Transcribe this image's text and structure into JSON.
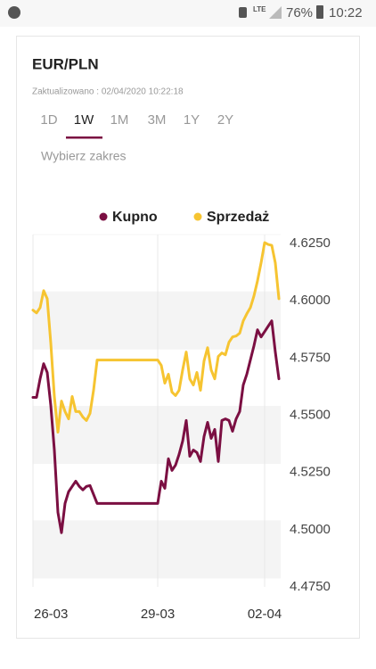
{
  "status_bar": {
    "network": "LTE",
    "battery": "76%",
    "time": "10:22"
  },
  "header": {
    "title": "EUR/PLN",
    "updated": "Zaktualizowano : 02/04/2020 10:22:18"
  },
  "tabs": [
    {
      "label": "1D"
    },
    {
      "label": "1W",
      "active": true
    },
    {
      "label": "1M"
    },
    {
      "label": "3M"
    },
    {
      "label": "1Y"
    },
    {
      "label": "2Y"
    }
  ],
  "range_label": "Wybierz zakres",
  "chart_data": {
    "type": "line",
    "legend": "top",
    "categories": [
      "26-03",
      null,
      null,
      null,
      null,
      null,
      null,
      null,
      null,
      null,
      null,
      null,
      null,
      null,
      null,
      null,
      null,
      null,
      null,
      null,
      null,
      null,
      null,
      null,
      null,
      null,
      null,
      null,
      null,
      null,
      null,
      null,
      null,
      null,
      null,
      "29-03",
      null,
      null,
      null,
      null,
      null,
      null,
      null,
      null,
      null,
      null,
      null,
      null,
      null,
      null,
      null,
      null,
      null,
      null,
      null,
      null,
      null,
      null,
      null,
      null,
      null,
      null,
      null,
      null,
      null,
      "02-04",
      null,
      null,
      null,
      null
    ],
    "series": [
      {
        "name": "Kupno",
        "color": "#7b0f42",
        "values": [
          4.5539,
          4.5539,
          4.562,
          4.5686,
          4.5648,
          4.5504,
          4.5309,
          4.5037,
          4.4948,
          4.5076,
          4.5127,
          4.515,
          4.5173,
          4.515,
          4.5135,
          4.515,
          4.5154,
          4.5115,
          4.5076,
          4.5076,
          4.5076,
          4.5076,
          4.5076,
          4.5076,
          4.5076,
          4.5076,
          4.5076,
          4.5076,
          4.5076,
          4.5076,
          4.5076,
          4.5076,
          4.5076,
          4.5076,
          4.5076,
          4.5076,
          4.5173,
          4.5142,
          4.5271,
          4.522,
          4.5243,
          4.529,
          4.5348,
          4.5438,
          4.5282,
          4.5309,
          4.5298,
          4.5259,
          4.5368,
          4.543,
          4.536,
          4.5399,
          4.5259,
          4.5438,
          4.5445,
          4.5438,
          4.5391,
          4.5445,
          4.5477,
          4.5593,
          4.564,
          4.5702,
          4.5764,
          4.5834,
          4.5803,
          4.5826,
          4.585,
          4.5873,
          4.5737,
          4.562
        ]
      },
      {
        "name": "Sprzedaż",
        "color": "#f6c431",
        "values": [
          4.592,
          4.5908,
          4.5931,
          4.6005,
          4.597,
          4.5776,
          4.5543,
          4.5387,
          4.5523,
          4.5477,
          4.5445,
          4.5543,
          4.5477,
          4.5477,
          4.5453,
          4.5438,
          4.5469,
          4.557,
          4.5702,
          4.5702,
          4.5702,
          4.5702,
          4.5702,
          4.5702,
          4.5702,
          4.5702,
          4.5702,
          4.5702,
          4.5702,
          4.5702,
          4.5702,
          4.5702,
          4.5702,
          4.5702,
          4.5702,
          4.5702,
          4.5679,
          4.5601,
          4.564,
          4.5562,
          4.5547,
          4.557,
          4.5659,
          4.5737,
          4.562,
          4.5593,
          4.5648,
          4.557,
          4.5698,
          4.5756,
          4.5659,
          4.562,
          4.5718,
          4.5733,
          4.5725,
          4.578,
          4.5803,
          4.5807,
          4.5819,
          4.5873,
          4.5904,
          4.5931,
          4.5982,
          4.6048,
          4.6126,
          4.6215,
          4.6207,
          4.6203,
          4.6126,
          4.597
        ]
      }
    ],
    "ylim": [
      4.475,
      4.625
    ],
    "yticks": [
      {
        "value": 4.475,
        "label": "4.4750"
      },
      {
        "value": 4.5,
        "label": "4.5000"
      },
      {
        "value": 4.525,
        "label": "4.5250"
      },
      {
        "value": 4.55,
        "label": "4.5500"
      },
      {
        "value": 4.575,
        "label": "4.5750"
      },
      {
        "value": 4.6,
        "label": "4.6000"
      },
      {
        "value": 4.625,
        "label": "4.6250"
      }
    ],
    "grid": true
  }
}
